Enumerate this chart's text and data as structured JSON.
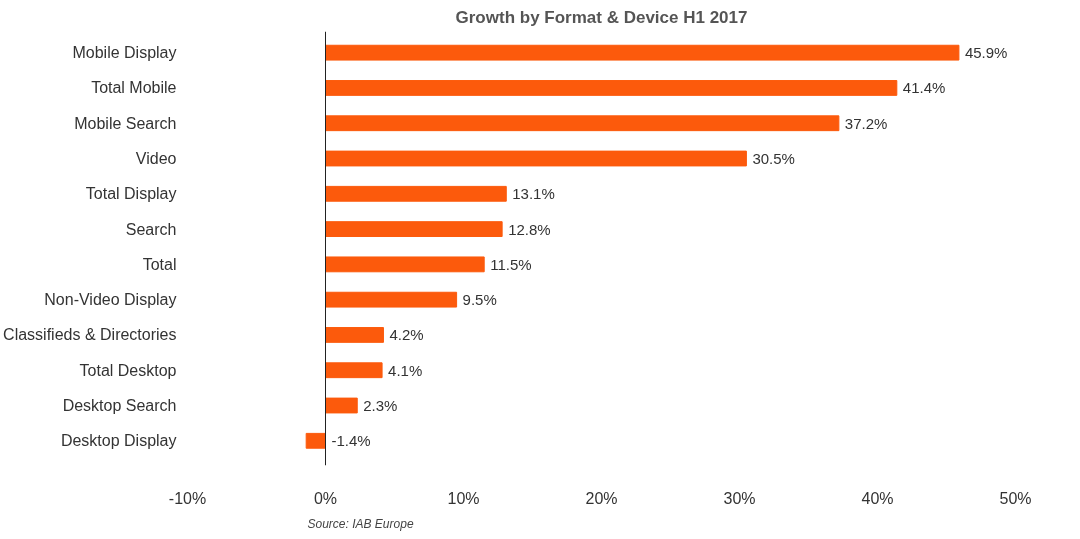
{
  "chart_data": {
    "type": "bar",
    "orientation": "horizontal",
    "title": "Growth by Format & Device H1 2017",
    "categories": [
      "Mobile Display",
      "Total Mobile",
      "Mobile Search",
      "Video",
      "Total Display",
      "Search",
      "Total",
      "Non-Video Display",
      "Classifieds & Directories",
      "Total Desktop",
      "Desktop Search",
      "Desktop Display"
    ],
    "values": [
      45.9,
      41.4,
      37.2,
      30.5,
      13.1,
      12.8,
      11.5,
      9.5,
      4.2,
      4.1,
      2.3,
      -1.4
    ],
    "value_labels": [
      "45.9%",
      "41.4%",
      "37.2%",
      "30.5%",
      "13.1%",
      "12.8%",
      "11.5%",
      "9.5%",
      "4.2%",
      "4.1%",
      "2.3%",
      "-1.4%"
    ],
    "color": "#fc5a0c",
    "xlim": [
      -10,
      50
    ],
    "xticks": [
      {
        "value": -10,
        "label": "-10%"
      },
      {
        "value": 0,
        "label": "0%"
      },
      {
        "value": 10,
        "label": "10%"
      },
      {
        "value": 20,
        "label": "20%"
      },
      {
        "value": 30,
        "label": "30%"
      },
      {
        "value": 40,
        "label": "40%"
      },
      {
        "value": 50,
        "label": "50%"
      }
    ],
    "ref_lines": [
      {
        "axis": "x",
        "value": 0,
        "color": "#222222"
      }
    ],
    "grid": false,
    "annotations": [
      "Source: IAB Europe"
    ]
  }
}
